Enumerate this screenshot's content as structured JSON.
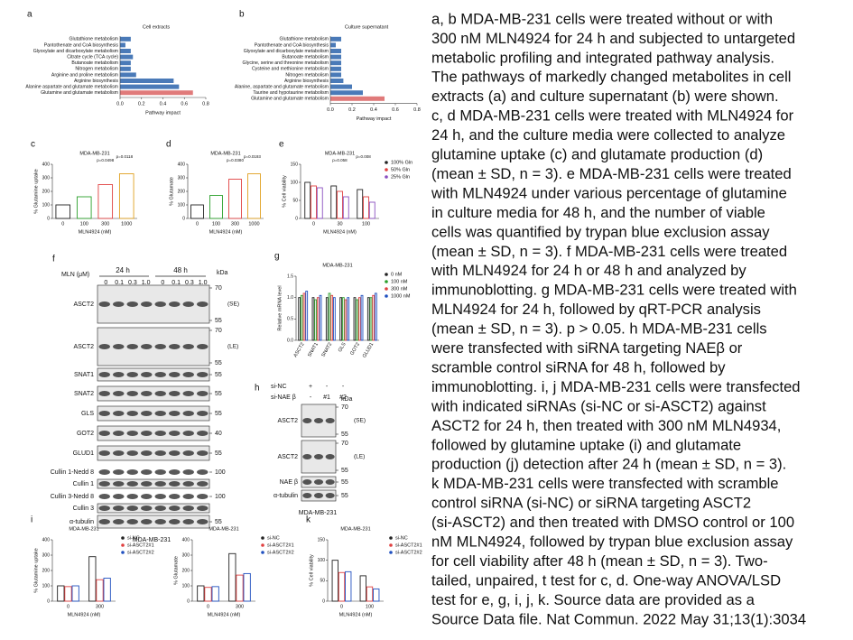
{
  "caption": [
    "a, b MDA-MB-231 cells were treated without or with",
    "300 nM MLN4924 for 24 h and subjected to untargeted",
    "metabolic profiling and integrated pathway analysis.",
    "The pathways of markedly changed metabolites in cell",
    "extracts (a) and culture supernatant (b) were shown.",
    "c, d MDA-MB-231 cells were treated with MLN4924 for",
    "24 h, and the culture media were collected to analyze",
    "glutamine uptake (c) and glutamate production (d)",
    "(mean ± SD, n = 3). e MDA-MB-231 cells were treated",
    "with MLN4924 under various percentage of glutamine",
    "in culture media for 48 h, and the number of viable",
    "cells was quantified by trypan blue exclusion assay",
    "(mean ± SD, n = 3). f MDA-MB-231 cells were treated",
    "with MLN4924 for 24 h or 48 h and analyzed by",
    "immunoblotting. g MDA-MB-231 cells were treated with",
    "MLN4924 for 24 h, followed by qRT-PCR analysis",
    "(mean ± SD, n = 3). p > 0.05. h MDA-MB-231 cells",
    "were transfected with siRNA targeting NAEβ or",
    "scramble control siRNA for 48 h, followed by",
    "immunoblotting. i, j MDA-MB-231 cells were transfected",
    "with indicated siRNAs (si-NC or si-ASCT2) against",
    "ASCT2 for 24 h, then treated with 300 nM MLN4934,",
    "followed by glutamine uptake (i) and glutamate",
    "production (j) detection after 24 h (mean ± SD, n = 3).",
    "k MDA-MB-231 cells were transfected with scramble",
    "control siRNA (si-NC) or siRNA targeting ASCT2",
    "(si-ASCT2) and then treated with DMSO control or 100",
    "nM MLN4924, followed by trypan blue exclusion assay",
    "for cell viability after 48 h (mean ± SD, n = 3). Two-",
    "tailed, unpaired, t test for c, d. One-way ANOVA/LSD",
    "test for e, g, i, j, k. Source data are provided as a",
    "Source Data file. Nat Commun. 2022 May 31;13(1):3034"
  ],
  "pathways": [
    {
      "letter": "a",
      "type": "hbar",
      "title": "Cell extracts",
      "xlabel": "Pathway impact",
      "xlim": [
        0,
        0.8
      ],
      "xticks": [
        {
          "value": 0,
          "label": "0.0"
        },
        0.2,
        0.4,
        0.6,
        0.8
      ],
      "categories": [
        "Glutathione metabolism",
        "Pantothenate and CoA biosynthesis",
        "Glyoxylate and dicarboxylate metabolism",
        "Citrate cycle (TCA cycle)",
        "Butanoate metabolism",
        "Nitrogen metabolism",
        "Arginine and proline metabolism",
        "Arginine biosynthesis",
        "Alanine aspartate and glutamate metabolism",
        "Glutamine and glutamate metabolism"
      ],
      "values": [
        0.1,
        0.05,
        0.1,
        0.12,
        0.1,
        0.1,
        0.15,
        0.5,
        0.55,
        0.68
      ],
      "colors": [
        "#4a7ab8",
        "#4a7ab8",
        "#4a7ab8",
        "#4a7ab8",
        "#4a7ab8",
        "#4a7ab8",
        "#4a7ab8",
        "#4a7ab8",
        "#4a7ab8",
        "#e07a7a"
      ]
    },
    {
      "letter": "b",
      "type": "hbar",
      "title": "Culture supernatant",
      "xlabel": "Pathway impact",
      "xlim": [
        0,
        0.8
      ],
      "xticks": [
        {
          "value": 0,
          "label": "0.0"
        },
        0.2,
        0.4,
        0.6,
        0.8
      ],
      "categories": [
        "Glutathione metabolism",
        "Pantothenate and CoA biosynthesis",
        "Glyoxylate and dicarboxylate metabolism",
        "Butanoate metabolism",
        "Glycine, serine and threonine metabolism",
        "Cysteine and methionine metabolism",
        "Nitrogen metabolism",
        "Arginine biosynthesis",
        "Alanine, aspartate and glutamate metabolism",
        "Taurine and hypotaurine metabolism",
        "Glutamine and glutamate metabolism"
      ],
      "values": [
        0.1,
        0.05,
        0.1,
        0.1,
        0.1,
        0.1,
        0.1,
        0.12,
        0.2,
        0.3,
        0.5
      ],
      "colors": [
        "#4a7ab8",
        "#4a7ab8",
        "#4a7ab8",
        "#4a7ab8",
        "#4a7ab8",
        "#4a7ab8",
        "#4a7ab8",
        "#4a7ab8",
        "#4a7ab8",
        "#4a7ab8",
        "#e07a7a"
      ]
    }
  ],
  "charts": [
    {
      "letter": "c",
      "type": "bar",
      "title": "MDA-MB-231",
      "ylabel": "% Glutamine uptake",
      "xlabel": "MLN4924 (nM)",
      "categories": [
        "0",
        "100",
        "300",
        "1000"
      ],
      "ylim": [
        0,
        400
      ],
      "yticks": [
        0,
        100,
        200,
        300,
        400
      ],
      "series": [
        {
          "values": [
            100,
            160,
            250,
            330
          ],
          "colors": [
            "#222222",
            "#2ca02c",
            "#e04040",
            "#e0a020"
          ]
        }
      ],
      "annotations": [
        "p=0.0498",
        "p=0.0118"
      ]
    },
    {
      "letter": "d",
      "type": "bar",
      "title": "MDA-MB-231",
      "ylabel": "% Glutamate",
      "xlabel": "MLN4924 (nM)",
      "categories": [
        "0",
        "100",
        "300",
        "1000"
      ],
      "ylim": [
        0,
        400
      ],
      "yticks": [
        0,
        100,
        200,
        300,
        400
      ],
      "series": [
        {
          "values": [
            100,
            170,
            290,
            330
          ],
          "colors": [
            "#222222",
            "#2ca02c",
            "#e04040",
            "#e0a020"
          ]
        }
      ],
      "annotations": [
        "p=0.0380",
        "p=0.0193"
      ]
    },
    {
      "letter": "e",
      "type": "bar",
      "title": "MDA-MB-231",
      "ylabel": "% Cell viability",
      "xlabel": "MLN4924 (nM)",
      "categories": [
        "0",
        "30",
        "100"
      ],
      "ylim": [
        0,
        150
      ],
      "yticks": [
        0,
        50,
        100,
        150
      ],
      "series": [
        {
          "name": "100% Gln",
          "color": "#222222",
          "values": [
            100,
            90,
            80
          ]
        },
        {
          "name": "50% Gln",
          "color": "#e04040",
          "values": [
            90,
            75,
            60
          ]
        },
        {
          "name": "25% Gln",
          "color": "#8a4fc0",
          "values": [
            85,
            60,
            45
          ]
        }
      ],
      "annotations": [
        "p=0.058",
        "p=0.008"
      ]
    },
    {
      "letter": "g",
      "type": "bar",
      "title": "MDA-MB-231",
      "ylabel": "Relative mRNA level",
      "categories": [
        "ASCT2",
        "SNAT1",
        "SNAT2",
        "GLS",
        "GOT2",
        "GLUD1"
      ],
      "ylim": [
        0,
        1.5
      ],
      "yticks": [
        {
          "value": 0,
          "label": "0.0"
        },
        0.5,
        {
          "value": 1,
          "label": "1.0"
        },
        1.5
      ],
      "series": [
        {
          "name": "0 nM",
          "color": "#222222",
          "values": [
            1,
            1,
            1,
            1,
            1,
            1
          ]
        },
        {
          "name": "100 nM",
          "color": "#2ca02c",
          "values": [
            1.05,
            0.95,
            1.1,
            1,
            0.95,
            1
          ]
        },
        {
          "name": "300 nM",
          "color": "#e04040",
          "values": [
            1.1,
            1,
            1.05,
            0.95,
            1,
            1.05
          ]
        },
        {
          "name": "1000 nM",
          "color": "#2050c0",
          "values": [
            1.15,
            1.05,
            1,
            1,
            1.05,
            1.1
          ]
        }
      ]
    },
    {
      "letter": "i",
      "type": "bar",
      "title": "MDA-MB-231",
      "ylabel": "% Glutamine uptake",
      "xlabel": "MLN4924 (nM)",
      "categories": [
        "0",
        "300"
      ],
      "ylim": [
        0,
        400
      ],
      "yticks": [
        0,
        100,
        200,
        300,
        400
      ],
      "series": [
        {
          "name": "si-NC",
          "color": "#222222",
          "values": [
            100,
            290
          ]
        },
        {
          "name": "si-ASCT2#1",
          "color": "#e04040",
          "values": [
            95,
            140
          ]
        },
        {
          "name": "si-ASCT2#2",
          "color": "#2050c0",
          "values": [
            100,
            150
          ]
        }
      ]
    },
    {
      "letter": "j",
      "type": "bar",
      "title": "MDA-MB-231",
      "ylabel": "% Glutamate",
      "xlabel": "MLN4924 (nM)",
      "categories": [
        "0",
        "300"
      ],
      "ylim": [
        0,
        400
      ],
      "yticks": [
        0,
        100,
        200,
        300,
        400
      ],
      "series": [
        {
          "name": "si-NC",
          "color": "#222222",
          "values": [
            100,
            310
          ]
        },
        {
          "name": "si-ASCT2#1",
          "color": "#e04040",
          "values": [
            90,
            170
          ]
        },
        {
          "name": "si-ASCT2#2",
          "color": "#2050c0",
          "values": [
            95,
            180
          ]
        }
      ]
    },
    {
      "letter": "k",
      "type": "bar",
      "title": "MDA-MB-231",
      "ylabel": "% Cell viability",
      "xlabel": "MLN4924 (nM)",
      "categories": [
        "0",
        "100"
      ],
      "ylim": [
        0,
        150
      ],
      "yticks": [
        0,
        50,
        100,
        150
      ],
      "series": [
        {
          "name": "si-NC",
          "color": "#222222",
          "values": [
            100,
            62
          ]
        },
        {
          "name": "si-ASCT2#1",
          "color": "#e04040",
          "values": [
            70,
            35
          ]
        },
        {
          "name": "si-ASCT2#2",
          "color": "#2050c0",
          "values": [
            72,
            30
          ]
        }
      ]
    }
  ],
  "blot_f": {
    "letter": "f",
    "treatment": "MLN (μM)",
    "times": [
      "24 h",
      "48 h"
    ],
    "lanes": [
      "0",
      "0.1",
      "0.3",
      "1.0",
      "0",
      "0.1",
      "0.3",
      "1.0"
    ],
    "kda_header": "kDa",
    "cell_line": "MDA-MB-231",
    "rows": [
      {
        "label": "ASCT2",
        "note": "(SE)",
        "kda": [
          "70",
          "55"
        ]
      },
      {
        "label": "ASCT2",
        "note": "(LE)",
        "kda": [
          "70",
          "55"
        ]
      },
      {
        "label": "SNAT1",
        "kda": [
          "55"
        ]
      },
      {
        "label": "SNAT2",
        "kda": [
          "55"
        ]
      },
      {
        "label": "GLS",
        "kda": [
          "55"
        ]
      },
      {
        "label": "GOT2",
        "kda": [
          "40"
        ]
      },
      {
        "label": "GLUD1",
        "kda": [
          "55"
        ]
      },
      {
        "label": "Cullin 1-Nedd 8",
        "kda": [
          "100"
        ]
      },
      {
        "label": "Cullin 1",
        "kda": []
      },
      {
        "label": "Cullin 3-Nedd 8",
        "kda": [
          "100"
        ]
      },
      {
        "label": "Cullin 3",
        "kda": []
      },
      {
        "label": "α-tubulin",
        "kda": [
          "55"
        ]
      }
    ]
  },
  "blot_h": {
    "letter": "h",
    "conditions": [
      {
        "label": "si-NC",
        "lanes": [
          "+",
          "-",
          "-"
        ]
      },
      {
        "label": "si-NAE β",
        "lanes": [
          "-",
          "#1",
          "#2"
        ]
      }
    ],
    "kda_header": "kDa",
    "cell_line": "MDA-MB-231",
    "rows": [
      {
        "label": "ASCT2",
        "note": "(SE)",
        "kda": [
          "70",
          "55"
        ]
      },
      {
        "label": "ASCT2",
        "note": "(LE)",
        "kda": [
          "70",
          "55"
        ]
      },
      {
        "label": "NAE β",
        "kda": [
          "55"
        ]
      },
      {
        "label": "α-tubulin",
        "kda": [
          "55"
        ]
      }
    ]
  }
}
